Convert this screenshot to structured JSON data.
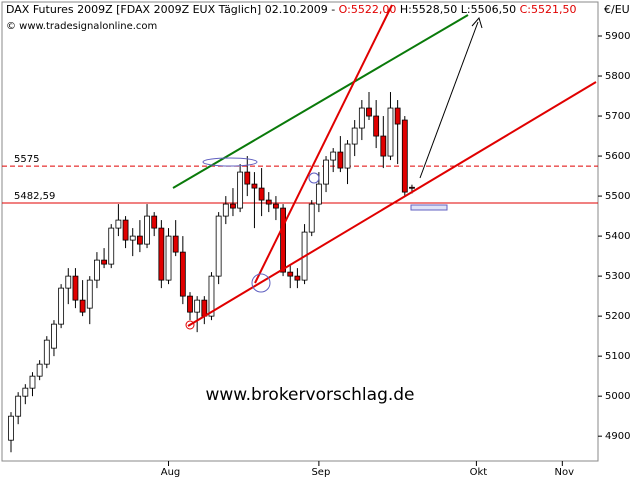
{
  "chart_data": {
    "type": "candlestick",
    "title_parts": [
      "DAX Futures 2009Z [FDAX 2009Z EUX  Täglich] 02.10.2009 - ",
      "O:5522,00",
      " H:5528,50 L:5506,50 ",
      "C:5521,50"
    ],
    "subtitle": "© www.tradesignalonline.com",
    "y_axis_label": "€/EU",
    "watermark": "www.brokervorschlag.de",
    "categories": [
      null,
      null,
      null,
      null,
      null,
      null,
      null,
      null,
      null,
      null,
      null,
      null,
      null,
      null,
      null,
      null,
      null,
      null,
      null,
      null,
      null,
      null,
      "Aug",
      null,
      null,
      null,
      null,
      null,
      null,
      null,
      null,
      null,
      null,
      null,
      null,
      null,
      null,
      null,
      null,
      null,
      null,
      null,
      null,
      "Sep",
      null,
      null,
      null,
      null,
      null,
      null,
      null,
      null,
      null,
      null,
      null,
      null,
      null,
      null,
      null,
      null,
      null,
      null,
      null,
      null,
      null,
      "Okt",
      null,
      null,
      null,
      null,
      null,
      null,
      null,
      null,
      null,
      null,
      null,
      "Nov",
      null,
      null,
      null,
      null,
      null
    ],
    "open": [
      4890,
      4950,
      5000,
      5020,
      5050,
      5080,
      5120,
      5180,
      5270,
      5300,
      5240,
      5220,
      5290,
      5340,
      5330,
      5420,
      5440,
      5390,
      5400,
      5380,
      5450,
      5420,
      5290,
      5400,
      5360,
      5250,
      5210,
      5240,
      5200,
      5300,
      5450,
      5480,
      5470,
      5560,
      5530,
      5520,
      5490,
      5480,
      5470,
      5310,
      5300,
      5290,
      5410,
      5480,
      5530,
      5590,
      5610,
      5570,
      5630,
      5670,
      5720,
      5700,
      5650,
      5600,
      5720,
      5690,
      5522,
      null,
      null,
      null,
      null,
      null,
      null,
      null,
      null,
      null,
      null,
      null,
      null,
      null,
      null,
      null,
      null,
      null,
      null,
      null,
      null,
      null,
      null,
      null,
      null,
      null,
      null
    ],
    "high": [
      4960,
      5010,
      5030,
      5060,
      5090,
      5150,
      5190,
      5280,
      5320,
      5320,
      5290,
      5300,
      5360,
      5370,
      5430,
      5480,
      5450,
      5420,
      5440,
      5480,
      5460,
      5440,
      5420,
      5440,
      5400,
      5260,
      5250,
      5250,
      5310,
      5460,
      5500,
      5520,
      5580,
      5600,
      5560,
      5570,
      5510,
      5500,
      5480,
      5330,
      5320,
      5430,
      5490,
      5560,
      5600,
      5620,
      5650,
      5640,
      5690,
      5740,
      5760,
      5740,
      5700,
      5760,
      5740,
      5700,
      5528.5,
      null,
      null,
      null,
      null,
      null,
      null,
      null,
      null,
      null,
      null,
      null,
      null,
      null,
      null,
      null,
      null,
      null,
      null,
      null,
      null,
      null,
      null,
      null,
      null,
      null,
      null
    ],
    "low": [
      4860,
      4930,
      4980,
      5000,
      5040,
      5070,
      5100,
      5170,
      5230,
      5220,
      5200,
      5180,
      5270,
      5320,
      5320,
      5400,
      5370,
      5350,
      5360,
      5370,
      5400,
      5270,
      5280,
      5350,
      5230,
      5190,
      5160,
      5180,
      5190,
      5280,
      5430,
      5450,
      5460,
      5500,
      5420,
      5450,
      5460,
      5440,
      5300,
      5270,
      5270,
      5280,
      5400,
      5460,
      5510,
      5560,
      5560,
      5530,
      5600,
      5640,
      5690,
      5620,
      5570,
      5590,
      5580,
      5500,
      5506.5,
      null,
      null,
      null,
      null,
      null,
      null,
      null,
      null,
      null,
      null,
      null,
      null,
      null,
      null,
      null,
      null,
      null,
      null,
      null,
      null,
      null,
      null,
      null,
      null,
      null,
      null
    ],
    "close": [
      4950,
      5000,
      5020,
      5050,
      5080,
      5140,
      5180,
      5270,
      5300,
      5240,
      5210,
      5290,
      5340,
      5330,
      5420,
      5440,
      5390,
      5400,
      5380,
      5450,
      5420,
      5290,
      5400,
      5360,
      5250,
      5210,
      5240,
      5200,
      5300,
      5450,
      5480,
      5470,
      5560,
      5530,
      5520,
      5490,
      5480,
      5470,
      5310,
      5300,
      5290,
      5410,
      5480,
      5530,
      5590,
      5610,
      5570,
      5630,
      5670,
      5720,
      5700,
      5650,
      5600,
      5720,
      5680,
      5510,
      5521.5,
      null,
      null,
      null,
      null,
      null,
      null,
      null,
      null,
      null,
      null,
      null,
      null,
      null,
      null,
      null,
      null,
      null,
      null,
      null,
      null,
      null,
      null,
      null,
      null,
      null,
      null
    ],
    "up_color": "#ffffff",
    "down_color": "#e00000",
    "ylim": [
      4838,
      5985
    ],
    "yticks": [
      4900,
      5000,
      5100,
      5200,
      5300,
      5400,
      5500,
      5600,
      5700,
      5800,
      5900
    ],
    "horizontal_lines": [
      {
        "value": 5575,
        "label": "5575",
        "style": "dashed"
      },
      {
        "value": 5482.59,
        "label": "5482,59",
        "style": "solid"
      }
    ]
  }
}
